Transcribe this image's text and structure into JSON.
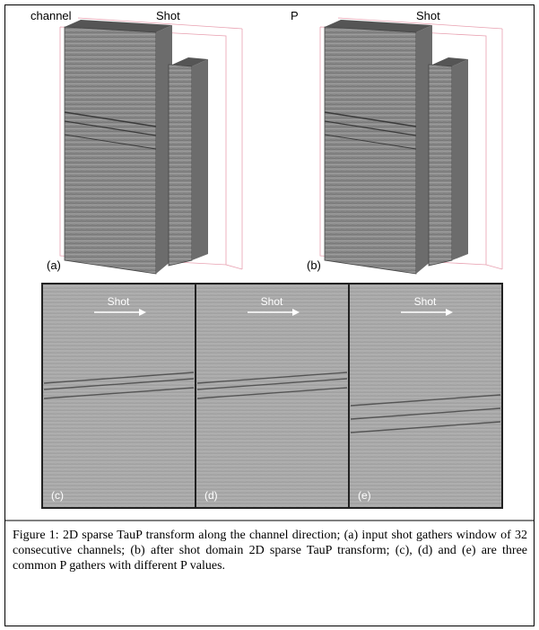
{
  "panels_3d": [
    {
      "axis_label": "channel",
      "direction_label": "Shot",
      "tag": "(a)"
    },
    {
      "axis_label": "P",
      "direction_label": "Shot",
      "tag": "(b)"
    }
  ],
  "gathers": [
    {
      "direction_label": "Shot",
      "tag": "(c)"
    },
    {
      "direction_label": "Shot",
      "tag": "(d)"
    },
    {
      "direction_label": "Shot",
      "tag": "(e)"
    }
  ],
  "caption": "Figure 1:  2D sparse TauP transform along the channel direction; (a) input shot gathers window of 32 consecutive channels; (b) after shot domain 2D sparse TauP transform; (c), (d) and (e) are three common P gathers with different P values."
}
